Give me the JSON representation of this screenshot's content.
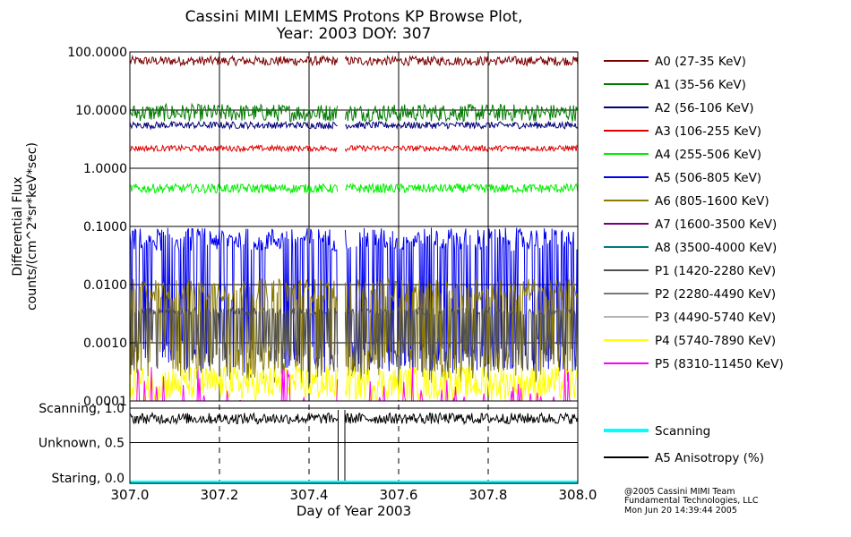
{
  "title_line1": "Cassini MIMI LEMMS Protons KP Browse Plot,",
  "title_line2": "Year: 2003 DOY: 307",
  "credits": [
    "@2005 Cassini MIMI Team",
    "Fundamental Technologies, LLC",
    "Mon Jun 20 14:39:44 2005"
  ],
  "chart_data": [
    {
      "type": "line",
      "ylabel": [
        "Differential Flux",
        "counts/(cm^2*sr*keV*sec)"
      ],
      "yscale": "log",
      "xlim": [
        307.0,
        308.0
      ],
      "ylim": [
        0.0001,
        100.0
      ],
      "ytick_values": [
        100,
        10,
        1,
        0.1,
        0.01,
        0.001,
        0.0001
      ],
      "ytick_labels": [
        "100.0000",
        "10.0000",
        "1.0000",
        "0.1000",
        "0.0100",
        "0.0010",
        "0.0001"
      ],
      "grid": true,
      "legend": "right",
      "data_gap": [
        307.465,
        307.48
      ],
      "series": [
        {
          "name": "A0 (27-35 KeV)",
          "color": "#7a0000",
          "typical": 70,
          "spread_decades": 0.08,
          "kind": "noise"
        },
        {
          "name": "A1 (35-56 KeV)",
          "color": "#007a00",
          "typical": 9,
          "spread_decades": 0.15,
          "kind": "noise"
        },
        {
          "name": "A2 (56-106 KeV)",
          "color": "#00007a",
          "typical": 5.5,
          "spread_decades": 0.06,
          "kind": "noise"
        },
        {
          "name": "A3 (106-255 KeV)",
          "color": "#e00000",
          "typical": 2.2,
          "spread_decades": 0.05,
          "kind": "noise"
        },
        {
          "name": "A4 (255-506 KeV)",
          "color": "#00ee00",
          "typical": 0.45,
          "spread_decades": 0.08,
          "kind": "noise"
        },
        {
          "name": "A5 (506-805 KeV)",
          "color": "#0000ee",
          "typical": 0.06,
          "spread_decades": 0.2,
          "kind": "spiky",
          "low": 0.0003
        },
        {
          "name": "A6 (805-1600 KeV)",
          "color": "#8a7a00",
          "typical": 0.008,
          "spread_decades": 0.2,
          "kind": "spiky",
          "low": 0.0002
        },
        {
          "name": "A7 (1600-3500 KeV)",
          "color": "#7a007a",
          "typical": 0.0001,
          "spread_decades": 0,
          "kind": "floor"
        },
        {
          "name": "A8 (3500-4000 KeV)",
          "color": "#007a7a",
          "typical": 0.0001,
          "spread_decades": 0,
          "kind": "floor"
        },
        {
          "name": "P1 (1420-2280 KeV)",
          "color": "#505050",
          "typical": 0.0035,
          "spread_decades": 0.06,
          "kind": "spiky",
          "low": 0.0003
        },
        {
          "name": "P2 (2280-4490 KeV)",
          "color": "#787878",
          "typical": 0.0001,
          "spread_decades": 0,
          "kind": "floor"
        },
        {
          "name": "P3 (4490-5740 KeV)",
          "color": "#b4b4b4",
          "typical": 0.0001,
          "spread_decades": 0,
          "kind": "floor"
        },
        {
          "name": "P4 (5740-7890 KeV)",
          "color": "#ffff00",
          "typical": 0.0002,
          "spread_decades": 0.3,
          "kind": "floor_noise"
        },
        {
          "name": "P5 (8310-11450 KeV)",
          "color": "#ff00ff",
          "typical": 0.0001,
          "spread_decades": 0.2,
          "kind": "floor_spikes"
        }
      ]
    },
    {
      "type": "line",
      "xlabel": "Day of Year 2003",
      "xlim": [
        307.0,
        308.0
      ],
      "xticks": [
        307.0,
        307.2,
        307.4,
        307.6,
        307.8,
        308.0
      ],
      "xtick_labels": [
        "307.0",
        "307.2",
        "307.4",
        "307.6",
        "307.8",
        "308.0"
      ],
      "ylim": [
        0.0,
        1.0
      ],
      "ytick_values": [
        1.0,
        0.5,
        0.0
      ],
      "ytick_labels": [
        "Scanning, 1.0",
        "Unknown, 0.5",
        "Staring, 0.0"
      ],
      "grid": "dashed-x",
      "legend": "right",
      "series": [
        {
          "name": "Scanning",
          "color": "#00ffff",
          "value": 0.0
        },
        {
          "name": "A5 Anisotropy (%)",
          "color": "#000000",
          "typical": 0.85,
          "spread": 0.08
        }
      ]
    }
  ]
}
